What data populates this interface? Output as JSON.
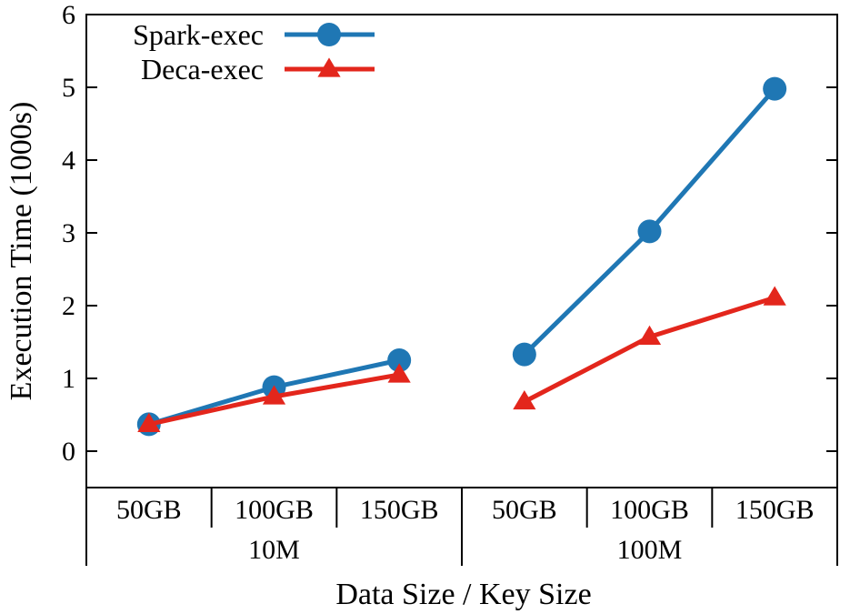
{
  "chart_data": {
    "type": "line",
    "title": "",
    "xlabel": "Data Size / Key Size",
    "ylabel": "Execution Time (1000s)",
    "ylim": [
      -0.5,
      6
    ],
    "yticks": [
      0,
      1,
      2,
      3,
      4,
      5,
      6
    ],
    "grid": false,
    "legend_position": "top-left",
    "groups": [
      {
        "name": "10M",
        "categories": [
          "50GB",
          "100GB",
          "150GB"
        ]
      },
      {
        "name": "100M",
        "categories": [
          "50GB",
          "100GB",
          "150GB"
        ]
      }
    ],
    "series": [
      {
        "name": "Spark-exec",
        "color": "#1f77b4",
        "marker": "circle",
        "values": [
          [
            0.37,
            0.88,
            1.25
          ],
          [
            1.33,
            3.02,
            4.98
          ]
        ]
      },
      {
        "name": "Deca-exec",
        "color": "#e3261c",
        "marker": "triangle",
        "values": [
          [
            0.37,
            0.75,
            1.05
          ],
          [
            0.68,
            1.57,
            2.11
          ]
        ]
      }
    ]
  }
}
